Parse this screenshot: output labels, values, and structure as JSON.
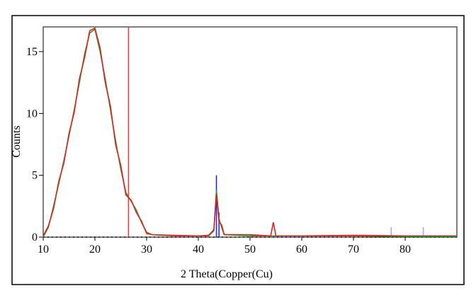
{
  "chart_data": {
    "type": "line",
    "xlabel": "2 Theta(Copper(Cu)",
    "ylabel": "Counts",
    "x": [
      10,
      11,
      12,
      13,
      14,
      15,
      16,
      17,
      18,
      19,
      20,
      21,
      22,
      23,
      24,
      25,
      26,
      27,
      28,
      29,
      30,
      31,
      35,
      40,
      42,
      43,
      43.5,
      44,
      44.5,
      45,
      50,
      54,
      54.5,
      55,
      60,
      70,
      80,
      90
    ],
    "series": [
      {
        "color": "#2a9d2a",
        "values": [
          0,
          0.8,
          2.5,
          4.3,
          6.2,
          8.2,
          10.3,
          12.5,
          14.8,
          16.5,
          16.8,
          15,
          12.8,
          10.3,
          7.8,
          5.5,
          3.6,
          2.9,
          2.2,
          1.2,
          0.4,
          0.2,
          0.1,
          0.1,
          0.1,
          0.5,
          3.8,
          1.5,
          0.8,
          0.2,
          0.1,
          0.1,
          0.1,
          0.1,
          0.1,
          0.1,
          0.05,
          0.05
        ]
      },
      {
        "color": "#e02020",
        "values": [
          0.1,
          0.9,
          2.3,
          4.5,
          6.0,
          8.4,
          10.1,
          12.8,
          14.5,
          16.7,
          16.9,
          15.3,
          12.5,
          10.6,
          7.5,
          5.8,
          3.4,
          3.0,
          2.0,
          1.3,
          0.3,
          0.2,
          0.15,
          0.1,
          0.15,
          0.6,
          3.5,
          1.2,
          1.0,
          0.2,
          0.2,
          0.1,
          1.2,
          0.1,
          0.1,
          0.15,
          0.1,
          0.1
        ]
      }
    ],
    "markers": [
      {
        "x": 26.5,
        "value": 17,
        "color": "#e8343c"
      },
      {
        "x": 43.5,
        "value": 5,
        "color": "#1a1aff"
      },
      {
        "x": 44,
        "value": 2,
        "color": "#1a1aff"
      },
      {
        "x": 77.3,
        "value": 0.8,
        "color": "#9aa6ff"
      },
      {
        "x": 83.5,
        "value": 0.8,
        "color": "#9aa6ff"
      }
    ],
    "xlim": [
      10,
      90
    ],
    "ylim": [
      0,
      17
    ],
    "xticks": [
      10,
      20,
      30,
      40,
      50,
      60,
      70,
      80
    ],
    "yticks": [
      0,
      5,
      10,
      15
    ]
  }
}
